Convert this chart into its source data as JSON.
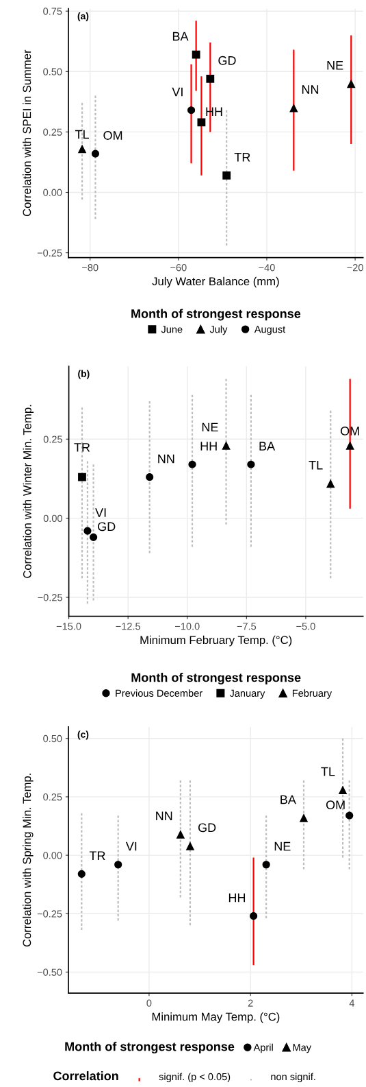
{
  "chart_data": [
    {
      "type": "scatter",
      "title": "(a)",
      "xlabel": "July Water Balance (mm)",
      "ylabel": "Correlation with SPEI in Summer",
      "legend_title": "Month of strongest response",
      "legend": "bottom",
      "grid": true,
      "xlim": [
        -84.9,
        -18.2
      ],
      "ylim": [
        -0.27,
        0.76
      ],
      "xticks": [
        {
          "value": -80,
          "label": "−80"
        },
        {
          "value": -60,
          "label": "−60"
        },
        {
          "value": -40,
          "label": "−40"
        },
        {
          "value": -20,
          "label": "−20"
        }
      ],
      "yticks": [
        {
          "value": -0.25,
          "label": "−0.25"
        },
        {
          "value": 0,
          "label": "0.00"
        },
        {
          "value": 0.25,
          "label": "0.25"
        },
        {
          "value": 0.5,
          "label": "0.50"
        },
        {
          "value": 0.75,
          "label": "0.75"
        }
      ],
      "series": [
        {
          "type": "line",
          "color": "#ff0000",
          "line_style": "solid",
          "x": [
            -56.0,
            -56.0,
            null,
            -52.8,
            -52.8,
            null,
            -57.1,
            -57.1,
            null,
            -54.8,
            -54.8,
            null,
            -33.9,
            -33.9,
            null,
            -20.9,
            -20.9
          ],
          "values": [
            0.42,
            0.71,
            null,
            0.25,
            0.62,
            null,
            0.12,
            0.53,
            null,
            0.07,
            0.48,
            null,
            0.09,
            0.59,
            null,
            0.2,
            0.65
          ]
        },
        {
          "type": "line",
          "color": "#bebebe",
          "line_style": "dashed",
          "x": [
            -81.8,
            -81.8,
            null,
            -78.8,
            -78.8,
            null,
            -49.1,
            -49.1
          ],
          "values": [
            -0.03,
            0.37,
            null,
            -0.11,
            0.4,
            null,
            -0.22,
            0.34
          ]
        },
        {
          "name": "June",
          "marker": "square",
          "color": "#000000",
          "x": [
            -56.0,
            -52.8,
            -54.8,
            -49.1
          ],
          "values": [
            0.57,
            0.47,
            0.29,
            0.07
          ]
        },
        {
          "name": "July",
          "marker": "triangle",
          "color": "#000000",
          "x": [
            -81.8,
            -33.9,
            -20.9
          ],
          "values": [
            0.18,
            0.35,
            0.45
          ]
        },
        {
          "name": "August",
          "marker": "circle",
          "color": "#000000",
          "x": [
            -78.8,
            -57.1
          ],
          "values": [
            0.16,
            0.34
          ]
        }
      ],
      "annotations": [
        {
          "text": "BA",
          "x": -56.0,
          "y": 0.57
        },
        {
          "text": "GD",
          "x": -52.8,
          "y": 0.47
        },
        {
          "text": "HH",
          "x": -54.8,
          "y": 0.29
        },
        {
          "text": "TR",
          "x": -49.1,
          "y": 0.07
        },
        {
          "text": "TL",
          "x": -81.8,
          "y": 0.18
        },
        {
          "text": "NN",
          "x": -33.9,
          "y": 0.35
        },
        {
          "text": "NE",
          "x": -20.9,
          "y": 0.45
        },
        {
          "text": "OM",
          "x": -78.8,
          "y": 0.16
        },
        {
          "text": "VI",
          "x": -57.1,
          "y": 0.34
        }
      ]
    },
    {
      "type": "scatter",
      "title": "(b)",
      "xlabel": "Minimum February Temp. (°C)",
      "ylabel": "Correlation with Winter Min. Temp.",
      "legend_title": "Month of strongest response",
      "legend": "bottom",
      "grid": true,
      "xlim": [
        -15.0,
        -2.58
      ],
      "ylim": [
        -0.31,
        0.48
      ],
      "xticks": [
        {
          "value": -15,
          "label": "−15.0"
        },
        {
          "value": -12.5,
          "label": "−12.5"
        },
        {
          "value": -10,
          "label": "−10.0"
        },
        {
          "value": -7.5,
          "label": "−7.5"
        },
        {
          "value": -5,
          "label": "−5.0"
        }
      ],
      "yticks": [
        {
          "value": -0.25,
          "label": "−0.25"
        },
        {
          "value": 0,
          "label": "0.00"
        },
        {
          "value": 0.25,
          "label": "0.25"
        }
      ],
      "series": [
        {
          "type": "line",
          "color": "#ff0000",
          "line_style": "solid",
          "x": [
            -3.13,
            -3.13
          ],
          "values": [
            0.03,
            0.44
          ]
        },
        {
          "type": "line",
          "color": "#bebebe",
          "line_style": "dashed",
          "x": [
            -14.44,
            -14.44,
            null,
            -14.21,
            -14.21,
            null,
            -13.96,
            -13.96,
            null,
            -11.59,
            -11.59,
            null,
            -9.79,
            -9.79,
            null,
            -8.36,
            -8.36,
            null,
            -7.31,
            -7.31,
            null,
            -3.95,
            -3.95
          ],
          "values": [
            -0.19,
            0.35,
            null,
            -0.27,
            0.18,
            null,
            -0.26,
            0.17,
            null,
            -0.11,
            0.37,
            null,
            -0.09,
            0.39,
            null,
            -0.02,
            0.44,
            null,
            -0.09,
            0.39,
            null,
            -0.19,
            0.34
          ]
        },
        {
          "name": "Previous December",
          "marker": "circle",
          "color": "#000000",
          "x": [
            -14.21,
            -13.96,
            -11.59,
            -9.79,
            -7.31
          ],
          "values": [
            -0.04,
            -0.06,
            0.13,
            0.17,
            0.17
          ]
        },
        {
          "name": "January",
          "marker": "square",
          "color": "#000000",
          "x": [
            -14.44
          ],
          "values": [
            0.13
          ]
        },
        {
          "name": "February",
          "marker": "triangle",
          "color": "#000000",
          "x": [
            -8.36,
            -3.95,
            -3.13
          ],
          "values": [
            0.23,
            0.11,
            0.23
          ]
        }
      ],
      "annotations": [
        {
          "text": "VI",
          "x": -14.21,
          "y": -0.04
        },
        {
          "text": "GD",
          "x": -13.96,
          "y": -0.06
        },
        {
          "text": "NN",
          "x": -11.59,
          "y": 0.13
        },
        {
          "text": "HH",
          "x": -9.79,
          "y": 0.17
        },
        {
          "text": "BA",
          "x": -7.31,
          "y": 0.17
        },
        {
          "text": "TR",
          "x": -14.44,
          "y": 0.13
        },
        {
          "text": "NE",
          "x": -8.36,
          "y": 0.23
        },
        {
          "text": "TL",
          "x": -3.95,
          "y": 0.11
        },
        {
          "text": "OM",
          "x": -3.13,
          "y": 0.23
        }
      ]
    },
    {
      "type": "scatter",
      "title": "(c)",
      "xlabel": "Minimum May Temp. (°C)",
      "ylabel": "Correlation with Spring Min. Temp.",
      "legend_title": "Month of strongest response",
      "legend": "bottom",
      "grid": true,
      "xlim": [
        -1.59,
        4.22
      ],
      "ylim": [
        -0.59,
        0.55
      ],
      "xticks": [
        0,
        2,
        4
      ],
      "yticks": [
        {
          "value": -0.5,
          "label": "−0.50"
        },
        {
          "value": -0.25,
          "label": "−0.25"
        },
        {
          "value": 0,
          "label": "0.00"
        },
        {
          "value": 0.25,
          "label": "0.25"
        },
        {
          "value": 0.5,
          "label": "0.50"
        }
      ],
      "series": [
        {
          "name": "signif. (p < 0.05)",
          "type": "line",
          "color": "#ff0000",
          "line_style": "solid",
          "x": [
            2.06,
            2.06
          ],
          "values": [
            -0.47,
            -0.01
          ]
        },
        {
          "name": "non signif.",
          "type": "line",
          "color": "#bebebe",
          "line_style": "dashed",
          "x": [
            -1.33,
            -1.33,
            null,
            -0.61,
            -0.61,
            null,
            0.62,
            0.62,
            null,
            0.81,
            0.81,
            null,
            2.31,
            2.31,
            null,
            3.05,
            3.05,
            null,
            3.82,
            3.82,
            null,
            3.95,
            3.95
          ],
          "values": [
            -0.32,
            0.18,
            null,
            -0.28,
            0.17,
            null,
            -0.18,
            0.32,
            null,
            -0.3,
            0.32,
            null,
            -0.27,
            0.17,
            null,
            -0.06,
            0.32,
            null,
            -0.01,
            0.5,
            null,
            -0.06,
            0.32
          ]
        },
        {
          "name": "April",
          "marker": "circle",
          "color": "#000000",
          "x": [
            -1.33,
            -0.61,
            2.31,
            2.06,
            3.95
          ],
          "values": [
            -0.08,
            -0.04,
            -0.04,
            -0.26,
            0.17
          ]
        },
        {
          "name": "May",
          "marker": "triangle",
          "color": "#000000",
          "x": [
            0.62,
            0.81,
            3.05,
            3.82
          ],
          "values": [
            0.09,
            0.04,
            0.16,
            0.28
          ]
        }
      ],
      "annotations": [
        {
          "text": "TR",
          "x": -1.33,
          "y": -0.08
        },
        {
          "text": "VI",
          "x": -0.61,
          "y": -0.04
        },
        {
          "text": "NE",
          "x": 2.31,
          "y": -0.04
        },
        {
          "text": "HH",
          "x": 2.06,
          "y": -0.26
        },
        {
          "text": "OM",
          "x": 3.95,
          "y": 0.17
        },
        {
          "text": "NN",
          "x": 0.62,
          "y": 0.09
        },
        {
          "text": "GD",
          "x": 0.81,
          "y": 0.04
        },
        {
          "text": "BA",
          "x": 3.05,
          "y": 0.16
        },
        {
          "text": "TL",
          "x": 3.82,
          "y": 0.28
        },
        "Correlation"
      ]
    }
  ]
}
